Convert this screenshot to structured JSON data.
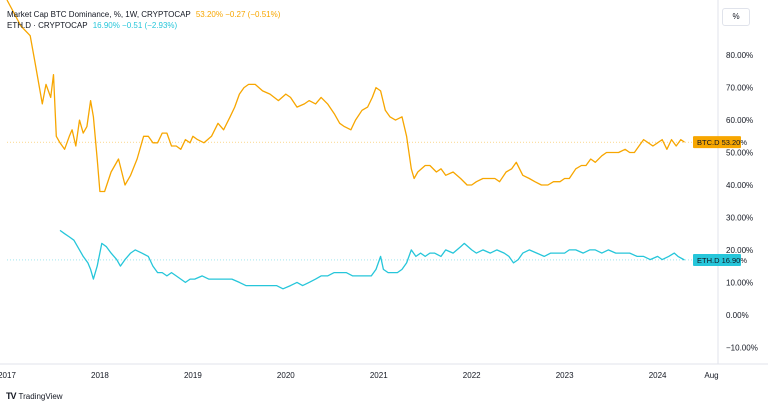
{
  "chart_data": {
    "type": "line",
    "title": "Market Cap BTC Dominance, %, 1W, CRYPTOCAP",
    "yunit": "%",
    "ylim": [
      -13,
      97
    ],
    "xlim": [
      2017.0,
      2024.65
    ],
    "x_ticks": [
      {
        "x": 2017.0,
        "label": "2017"
      },
      {
        "x": 2018.0,
        "label": "2018"
      },
      {
        "x": 2019.0,
        "label": "2019"
      },
      {
        "x": 2020.0,
        "label": "2020"
      },
      {
        "x": 2021.0,
        "label": "2021"
      },
      {
        "x": 2022.0,
        "label": "2022"
      },
      {
        "x": 2023.0,
        "label": "2023"
      },
      {
        "x": 2024.0,
        "label": "2024"
      },
      {
        "x": 2024.58,
        "label": "Aug"
      }
    ],
    "y_ticks": [
      {
        "y": 80,
        "label": "80.00%"
      },
      {
        "y": 70,
        "label": "70.00%"
      },
      {
        "y": 60,
        "label": "60.00%"
      },
      {
        "y": 50,
        "label": "50.00%"
      },
      {
        "y": 40,
        "label": "40.00%"
      },
      {
        "y": 30,
        "label": "30.00%"
      },
      {
        "y": 20,
        "label": "20.00%"
      },
      {
        "y": 10,
        "label": "10.00%"
      },
      {
        "y": 0,
        "label": "0.00%"
      },
      {
        "y": -10,
        "label": "−10.00%"
      }
    ],
    "series": [
      {
        "name": "BTC.D",
        "legend": "Market Cap BTC Dominance, %, 1W, CRYPTOCAP",
        "color": "#f7a600",
        "last_value": "53.20%",
        "change": "−0.27 (−0.51%)",
        "last": 53.2,
        "points": [
          [
            2017.0,
            97
          ],
          [
            2017.15,
            89
          ],
          [
            2017.25,
            86
          ],
          [
            2017.3,
            78
          ],
          [
            2017.38,
            65
          ],
          [
            2017.42,
            71
          ],
          [
            2017.47,
            67
          ],
          [
            2017.5,
            74
          ],
          [
            2017.53,
            55
          ],
          [
            2017.57,
            53
          ],
          [
            2017.62,
            51
          ],
          [
            2017.67,
            55
          ],
          [
            2017.7,
            57
          ],
          [
            2017.74,
            52
          ],
          [
            2017.78,
            60
          ],
          [
            2017.82,
            56
          ],
          [
            2017.86,
            58
          ],
          [
            2017.9,
            66
          ],
          [
            2017.93,
            61
          ],
          [
            2017.97,
            48
          ],
          [
            2018.0,
            38
          ],
          [
            2018.05,
            38
          ],
          [
            2018.12,
            44
          ],
          [
            2018.2,
            48
          ],
          [
            2018.27,
            40
          ],
          [
            2018.33,
            43
          ],
          [
            2018.4,
            48
          ],
          [
            2018.47,
            55
          ],
          [
            2018.52,
            55
          ],
          [
            2018.57,
            53
          ],
          [
            2018.62,
            53
          ],
          [
            2018.67,
            56
          ],
          [
            2018.72,
            56
          ],
          [
            2018.77,
            52
          ],
          [
            2018.82,
            52
          ],
          [
            2018.87,
            51
          ],
          [
            2018.92,
            54
          ],
          [
            2018.97,
            53
          ],
          [
            2019.0,
            55
          ],
          [
            2019.05,
            54
          ],
          [
            2019.12,
            53
          ],
          [
            2019.2,
            55
          ],
          [
            2019.27,
            59
          ],
          [
            2019.33,
            57
          ],
          [
            2019.4,
            61
          ],
          [
            2019.45,
            64
          ],
          [
            2019.5,
            68
          ],
          [
            2019.55,
            70
          ],
          [
            2019.6,
            71
          ],
          [
            2019.67,
            71
          ],
          [
            2019.75,
            69
          ],
          [
            2019.83,
            68
          ],
          [
            2019.92,
            66
          ],
          [
            2020.0,
            68
          ],
          [
            2020.05,
            67
          ],
          [
            2020.12,
            64
          ],
          [
            2020.2,
            65
          ],
          [
            2020.25,
            66
          ],
          [
            2020.32,
            65
          ],
          [
            2020.38,
            67
          ],
          [
            2020.45,
            65
          ],
          [
            2020.52,
            62
          ],
          [
            2020.58,
            59
          ],
          [
            2020.63,
            58
          ],
          [
            2020.7,
            57
          ],
          [
            2020.75,
            60
          ],
          [
            2020.82,
            63
          ],
          [
            2020.88,
            64
          ],
          [
            2020.93,
            67
          ],
          [
            2020.97,
            70
          ],
          [
            2021.02,
            69
          ],
          [
            2021.07,
            63
          ],
          [
            2021.12,
            61
          ],
          [
            2021.18,
            60
          ],
          [
            2021.25,
            61
          ],
          [
            2021.3,
            55
          ],
          [
            2021.35,
            45
          ],
          [
            2021.38,
            42
          ],
          [
            2021.42,
            44
          ],
          [
            2021.5,
            46
          ],
          [
            2021.55,
            46
          ],
          [
            2021.62,
            44
          ],
          [
            2021.67,
            45
          ],
          [
            2021.72,
            43
          ],
          [
            2021.8,
            44
          ],
          [
            2021.88,
            42
          ],
          [
            2021.95,
            40
          ],
          [
            2022.0,
            40
          ],
          [
            2022.05,
            41
          ],
          [
            2022.12,
            42
          ],
          [
            2022.18,
            42
          ],
          [
            2022.25,
            42
          ],
          [
            2022.3,
            41
          ],
          [
            2022.37,
            44
          ],
          [
            2022.43,
            45
          ],
          [
            2022.48,
            47
          ],
          [
            2022.55,
            43
          ],
          [
            2022.62,
            42
          ],
          [
            2022.68,
            41
          ],
          [
            2022.75,
            40
          ],
          [
            2022.82,
            40
          ],
          [
            2022.88,
            41
          ],
          [
            2022.95,
            41
          ],
          [
            2023.0,
            42
          ],
          [
            2023.05,
            42
          ],
          [
            2023.12,
            45
          ],
          [
            2023.18,
            46
          ],
          [
            2023.23,
            46
          ],
          [
            2023.28,
            48
          ],
          [
            2023.33,
            47
          ],
          [
            2023.4,
            49
          ],
          [
            2023.45,
            50
          ],
          [
            2023.52,
            50
          ],
          [
            2023.58,
            50
          ],
          [
            2023.65,
            51
          ],
          [
            2023.7,
            50
          ],
          [
            2023.75,
            50
          ],
          [
            2023.8,
            52
          ],
          [
            2023.85,
            54
          ],
          [
            2023.9,
            53
          ],
          [
            2023.95,
            52
          ],
          [
            2024.0,
            53
          ],
          [
            2024.05,
            54
          ],
          [
            2024.1,
            51
          ],
          [
            2024.15,
            54
          ],
          [
            2024.2,
            52
          ],
          [
            2024.25,
            54
          ],
          [
            2024.29,
            53.2
          ]
        ]
      },
      {
        "name": "ETH.D",
        "legend": "ETH.D · CRYPTOCAP",
        "color": "#26c6da",
        "last_value": "16.90%",
        "change": "−0.51 (−2.93%)",
        "last": 16.9,
        "points": [
          [
            2017.57,
            26
          ],
          [
            2017.62,
            25
          ],
          [
            2017.67,
            24
          ],
          [
            2017.72,
            23
          ],
          [
            2017.78,
            20
          ],
          [
            2017.82,
            18
          ],
          [
            2017.87,
            16
          ],
          [
            2017.9,
            14
          ],
          [
            2017.93,
            11
          ],
          [
            2017.97,
            15
          ],
          [
            2018.02,
            22
          ],
          [
            2018.07,
            21
          ],
          [
            2018.12,
            19
          ],
          [
            2018.18,
            17
          ],
          [
            2018.22,
            15
          ],
          [
            2018.27,
            17
          ],
          [
            2018.33,
            19
          ],
          [
            2018.38,
            20
          ],
          [
            2018.45,
            19
          ],
          [
            2018.52,
            18
          ],
          [
            2018.57,
            15
          ],
          [
            2018.62,
            13
          ],
          [
            2018.67,
            13
          ],
          [
            2018.72,
            12
          ],
          [
            2018.77,
            13
          ],
          [
            2018.82,
            12
          ],
          [
            2018.87,
            11
          ],
          [
            2018.92,
            10
          ],
          [
            2018.97,
            11
          ],
          [
            2019.02,
            11
          ],
          [
            2019.1,
            12
          ],
          [
            2019.17,
            11
          ],
          [
            2019.23,
            11
          ],
          [
            2019.3,
            11
          ],
          [
            2019.35,
            11
          ],
          [
            2019.42,
            11
          ],
          [
            2019.5,
            10
          ],
          [
            2019.57,
            9
          ],
          [
            2019.63,
            9
          ],
          [
            2019.7,
            9
          ],
          [
            2019.77,
            9
          ],
          [
            2019.83,
            9
          ],
          [
            2019.9,
            9
          ],
          [
            2019.97,
            8
          ],
          [
            2020.05,
            9
          ],
          [
            2020.12,
            10
          ],
          [
            2020.18,
            9
          ],
          [
            2020.25,
            10
          ],
          [
            2020.32,
            11
          ],
          [
            2020.38,
            12
          ],
          [
            2020.45,
            12
          ],
          [
            2020.52,
            13
          ],
          [
            2020.58,
            13
          ],
          [
            2020.65,
            13
          ],
          [
            2020.72,
            12
          ],
          [
            2020.78,
            12
          ],
          [
            2020.85,
            12
          ],
          [
            2020.92,
            12
          ],
          [
            2020.97,
            14
          ],
          [
            2021.02,
            18
          ],
          [
            2021.05,
            14
          ],
          [
            2021.1,
            13
          ],
          [
            2021.15,
            13
          ],
          [
            2021.2,
            13
          ],
          [
            2021.25,
            14
          ],
          [
            2021.3,
            16
          ],
          [
            2021.35,
            20
          ],
          [
            2021.4,
            18
          ],
          [
            2021.45,
            19
          ],
          [
            2021.5,
            18
          ],
          [
            2021.55,
            19
          ],
          [
            2021.6,
            19
          ],
          [
            2021.67,
            18
          ],
          [
            2021.72,
            20
          ],
          [
            2021.8,
            19
          ],
          [
            2021.88,
            21
          ],
          [
            2021.92,
            22
          ],
          [
            2022.0,
            20
          ],
          [
            2022.05,
            19
          ],
          [
            2022.12,
            20
          ],
          [
            2022.2,
            19
          ],
          [
            2022.27,
            20
          ],
          [
            2022.35,
            19
          ],
          [
            2022.4,
            18
          ],
          [
            2022.45,
            16
          ],
          [
            2022.5,
            17
          ],
          [
            2022.55,
            19
          ],
          [
            2022.62,
            20
          ],
          [
            2022.7,
            19
          ],
          [
            2022.78,
            18
          ],
          [
            2022.85,
            19
          ],
          [
            2022.92,
            19
          ],
          [
            2023.0,
            19
          ],
          [
            2023.05,
            20
          ],
          [
            2023.12,
            20
          ],
          [
            2023.2,
            19
          ],
          [
            2023.27,
            20
          ],
          [
            2023.33,
            20
          ],
          [
            2023.4,
            19
          ],
          [
            2023.47,
            20
          ],
          [
            2023.55,
            19
          ],
          [
            2023.62,
            19
          ],
          [
            2023.7,
            19
          ],
          [
            2023.78,
            18
          ],
          [
            2023.85,
            18
          ],
          [
            2023.92,
            17
          ],
          [
            2024.0,
            18
          ],
          [
            2024.05,
            17
          ],
          [
            2024.12,
            18
          ],
          [
            2024.18,
            19
          ],
          [
            2024.22,
            18
          ],
          [
            2024.29,
            16.9
          ]
        ]
      }
    ]
  },
  "legend": {
    "btc_label": "Market Cap BTC Dominance, %, 1W, CRYPTOCAP",
    "btc_change": "53.20% −0.27 (−0.51%)",
    "eth_label": "ETH.D · CRYPTOCAP",
    "eth_change": "16.90% −0.51 (−2.93%)"
  },
  "scale_button": "%",
  "attribution": "TradingView",
  "attribution_logo": "TV"
}
